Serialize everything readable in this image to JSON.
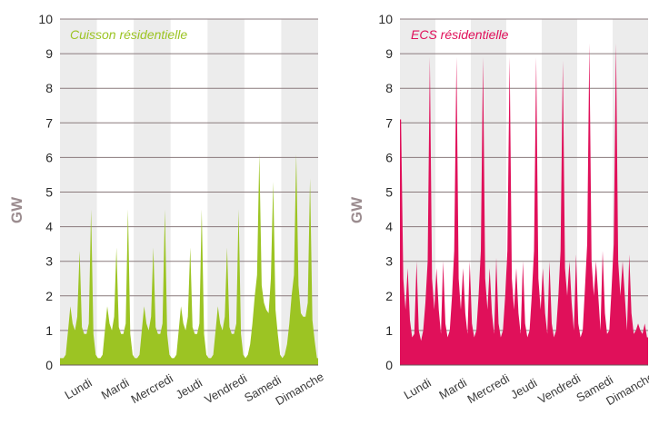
{
  "chart_data": [
    {
      "type": "area",
      "title": "Cuisson résidentielle",
      "ylabel": "GW",
      "xlabel": "",
      "ylim": [
        0,
        10
      ],
      "yticks": [
        0,
        1,
        2,
        3,
        4,
        5,
        6,
        7,
        8,
        9,
        10
      ],
      "grid": true,
      "color": "#9cc423",
      "title_color": "#9cc423",
      "band_color": "#ececec",
      "categories": [
        "Lundi",
        "Mardi",
        "Mercredi",
        "Jeudi",
        "Vendredi",
        "Samedi",
        "Dimanche"
      ],
      "series": [
        {
          "values": [
            [
              0.2,
              0.2,
              0.3,
              1.0,
              1.7,
              1.2,
              1.0,
              1.4,
              3.3,
              1.1,
              0.9,
              0.9,
              1.2,
              4.5,
              0.9,
              0.3
            ],
            [
              0.2,
              0.2,
              0.3,
              1.0,
              1.7,
              1.2,
              1.0,
              1.4,
              3.4,
              1.1,
              0.9,
              0.9,
              1.2,
              4.5,
              0.9,
              0.3
            ],
            [
              0.2,
              0.2,
              0.3,
              1.0,
              1.7,
              1.2,
              1.0,
              1.4,
              3.4,
              1.1,
              0.9,
              0.9,
              1.2,
              4.5,
              0.9,
              0.3
            ],
            [
              0.2,
              0.2,
              0.3,
              1.0,
              1.7,
              1.2,
              1.0,
              1.4,
              3.4,
              1.1,
              0.9,
              0.9,
              1.2,
              4.5,
              0.9,
              0.3
            ],
            [
              0.2,
              0.2,
              0.3,
              1.0,
              1.7,
              1.2,
              1.0,
              1.4,
              3.4,
              1.1,
              0.9,
              0.9,
              1.2,
              4.5,
              0.9,
              0.3
            ],
            [
              0.2,
              0.3,
              0.6,
              1.2,
              2.0,
              2.6,
              6.1,
              2.3,
              1.8,
              1.6,
              1.5,
              2.5,
              5.3,
              1.6,
              0.9,
              0.3
            ],
            [
              0.2,
              0.3,
              0.6,
              1.2,
              2.0,
              2.6,
              6.1,
              2.3,
              1.5,
              1.4,
              1.4,
              1.8,
              5.4,
              1.3,
              0.7,
              0.2
            ]
          ]
        }
      ]
    },
    {
      "type": "area",
      "title": "ECS résidentielle",
      "ylabel": "GW",
      "xlabel": "",
      "ylim": [
        0,
        10
      ],
      "yticks": [
        0,
        1,
        2,
        3,
        4,
        5,
        6,
        7,
        8,
        9,
        10
      ],
      "grid": true,
      "color": "#e0105a",
      "title_color": "#e0105a",
      "band_color": "#ececec",
      "categories": [
        "Lundi",
        "Mardi",
        "Mercredi",
        "Jeudi",
        "Vendredi",
        "Samedi",
        "Dimanche"
      ],
      "series": [
        {
          "values": [
            [
              7.1,
              2.5,
              1.6,
              2.8,
              1.3,
              0.8,
              0.9,
              3.0,
              1.0,
              0.7,
              1.0,
              1.8,
              3.0,
              8.9,
              2.5,
              1.6
            ],
            [
              2.8,
              1.6,
              0.9,
              3.0,
              1.2,
              0.8,
              1.0,
              2.0,
              3.3,
              8.9,
              2.5,
              1.6,
              2.8,
              1.5,
              0.9,
              3.0
            ],
            [
              1.2,
              0.8,
              1.0,
              2.0,
              3.3,
              8.9,
              2.5,
              1.6,
              2.8,
              1.5,
              0.9,
              3.1,
              1.2,
              0.8,
              1.0,
              2.0
            ],
            [
              3.3,
              8.9,
              2.5,
              1.6,
              2.8,
              1.5,
              0.9,
              3.0,
              1.2,
              0.8,
              1.0,
              2.0,
              3.3,
              8.9,
              2.5,
              1.6
            ],
            [
              2.8,
              1.5,
              0.9,
              3.0,
              1.2,
              0.8,
              1.0,
              2.0,
              3.3,
              8.8,
              2.8,
              2.0,
              3.0,
              1.8,
              1.0,
              3.2
            ],
            [
              1.2,
              0.8,
              1.0,
              2.2,
              3.5,
              9.3,
              3.0,
              2.0,
              3.0,
              2.0,
              1.0,
              3.3,
              1.5,
              0.9,
              1.0,
              2.2
            ],
            [
              3.5,
              9.3,
              3.0,
              2.0,
              3.0,
              2.0,
              1.0,
              3.2,
              1.5,
              0.9,
              1.0,
              1.2,
              1.0,
              0.9,
              1.2,
              0.8
            ]
          ]
        }
      ]
    }
  ]
}
